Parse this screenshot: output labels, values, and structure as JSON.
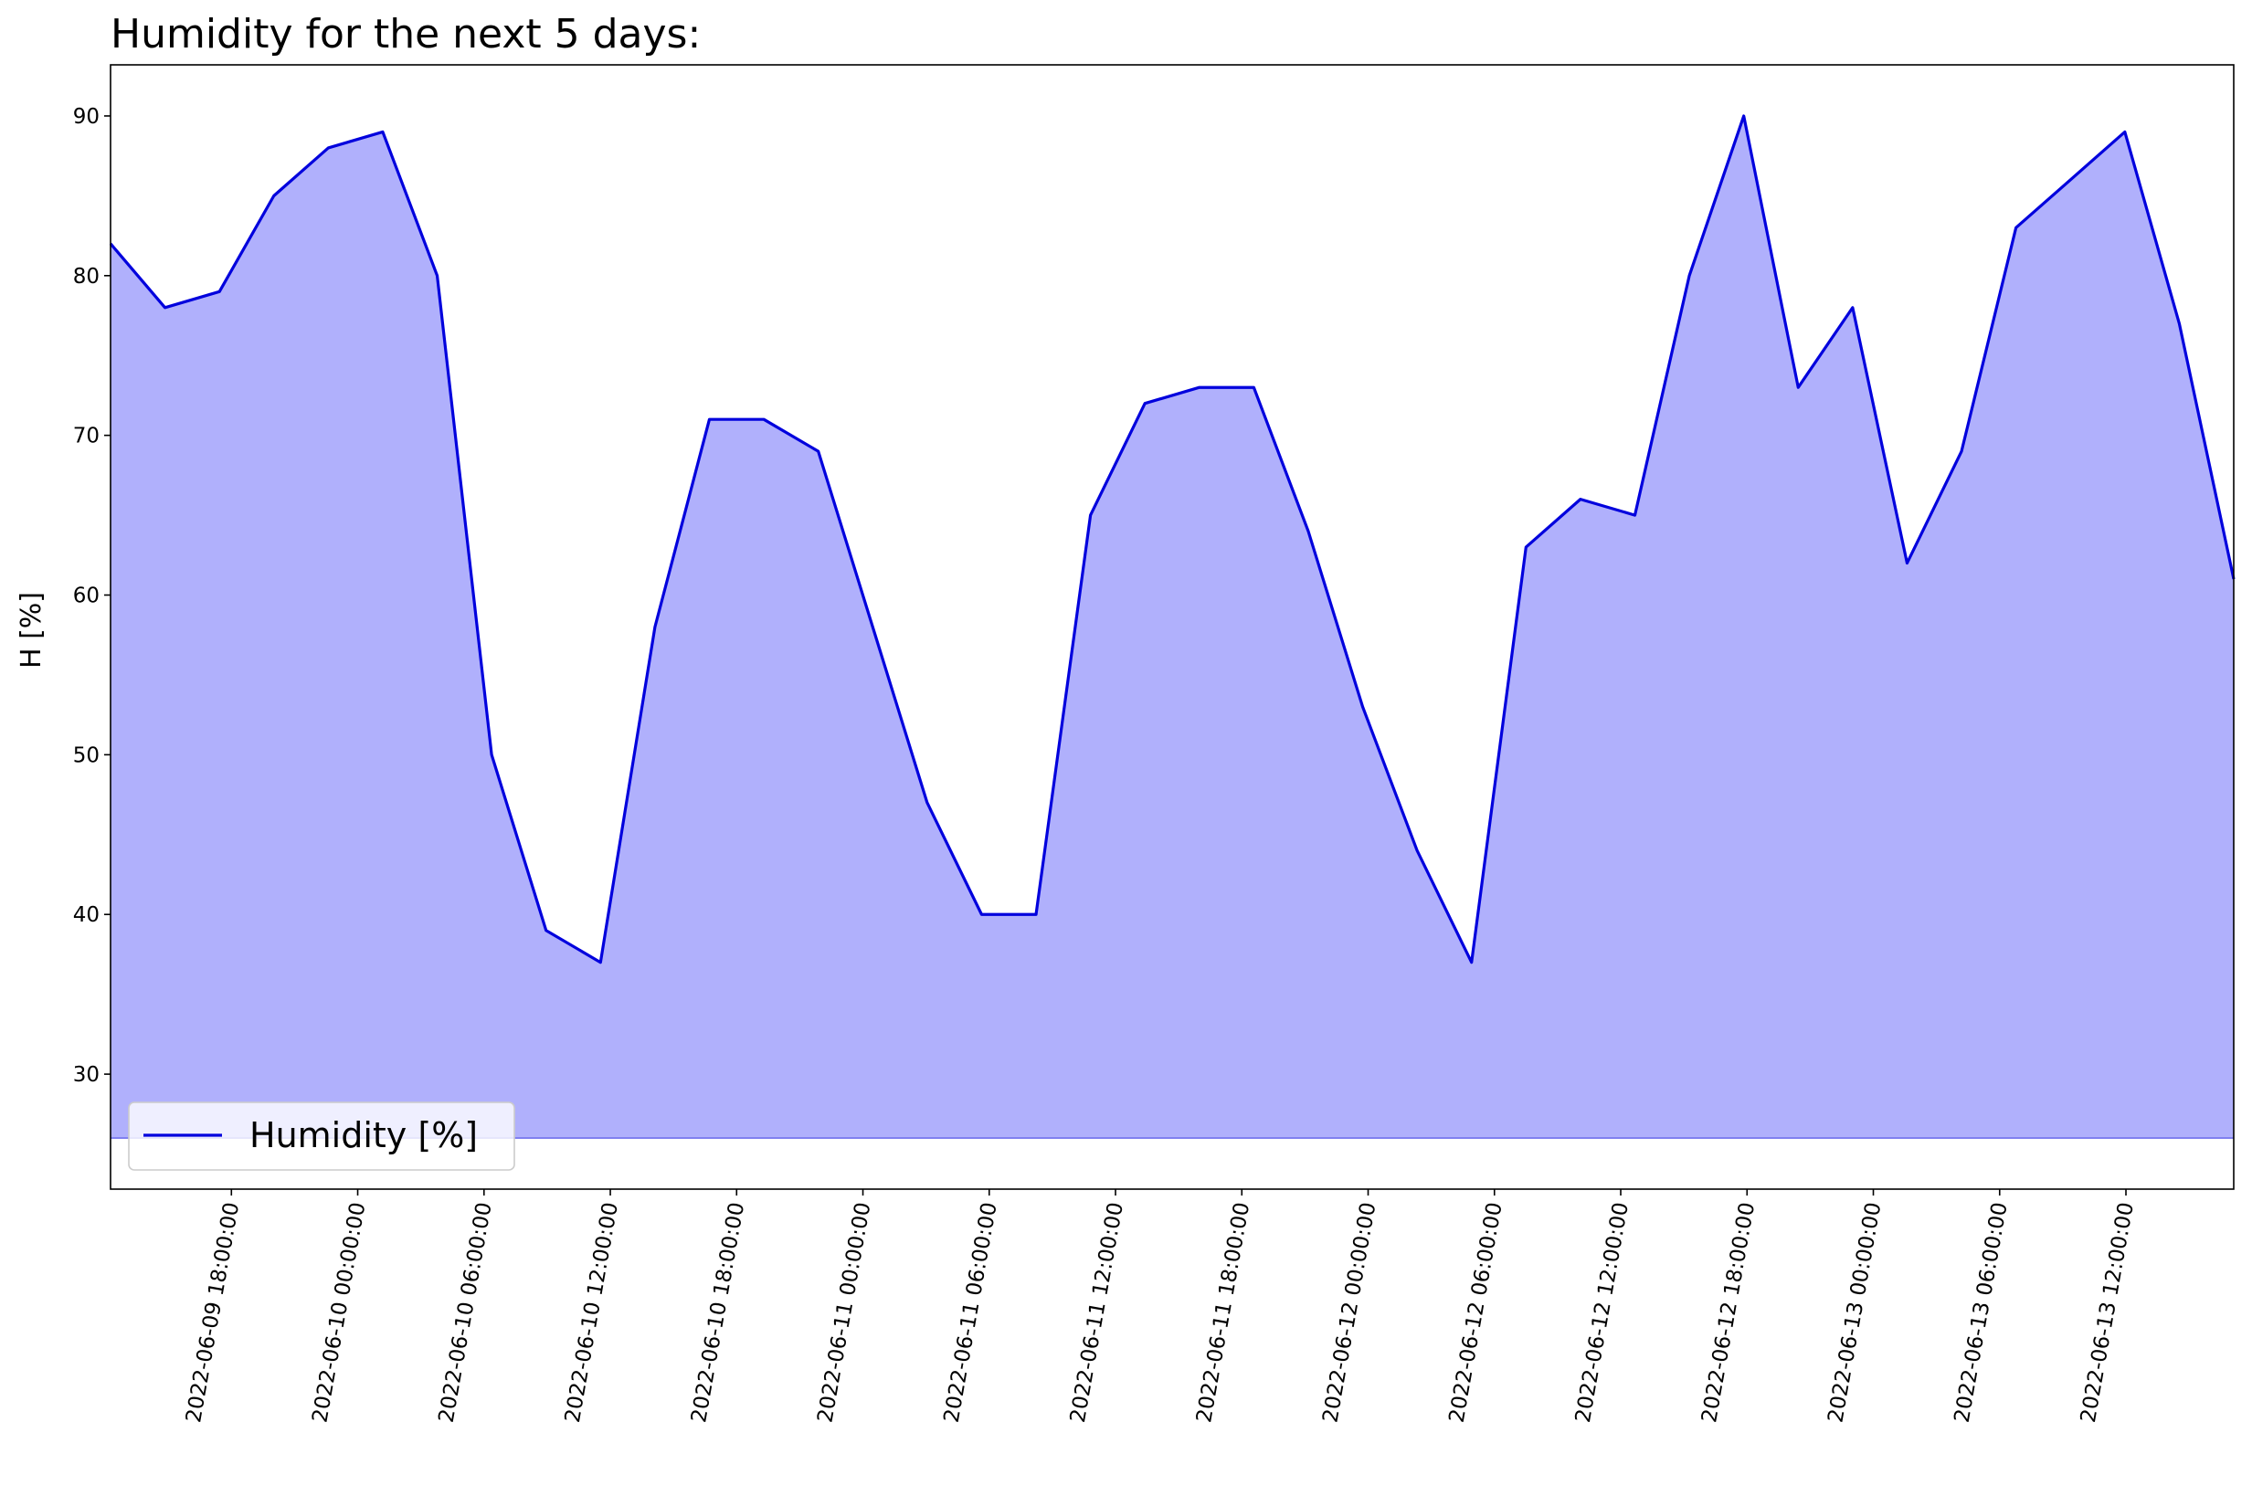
{
  "chart_data": {
    "type": "area",
    "title": "Humidity for the next 5 days:",
    "ylabel": "H [%]",
    "categories": [
      null,
      null,
      null,
      null,
      null,
      null,
      null,
      null,
      null,
      null,
      null,
      null,
      null,
      null,
      null,
      null,
      null,
      null,
      null,
      null,
      null,
      null,
      null,
      null,
      null,
      null,
      null,
      null,
      null,
      null,
      null,
      null,
      null,
      null,
      null,
      null,
      null,
      null,
      null,
      null
    ],
    "series": [
      {
        "name": "Humidity [%]",
        "color": "#0000dd",
        "fill": "#b0b0fc",
        "values": [
          82,
          78,
          79,
          85,
          88,
          89,
          80,
          50,
          39,
          37,
          58,
          71,
          71,
          69,
          58,
          47,
          40,
          40,
          65,
          72,
          73,
          73,
          64,
          53,
          44,
          37,
          63,
          66,
          65,
          80,
          90,
          73,
          78,
          62,
          69,
          83,
          86,
          89,
          77,
          61
        ]
      }
    ],
    "fill_to": 26,
    "xlim": [
      0,
      39
    ],
    "xticks": [
      {
        "value": 2.22,
        "label": "2022-06-09 18:00:00"
      },
      {
        "value": 4.54,
        "label": "2022-06-10 00:00:00"
      },
      {
        "value": 6.86,
        "label": "2022-06-10 06:00:00"
      },
      {
        "value": 9.18,
        "label": "2022-06-10 12:00:00"
      },
      {
        "value": 11.5,
        "label": "2022-06-10 18:00:00"
      },
      {
        "value": 13.82,
        "label": "2022-06-11 00:00:00"
      },
      {
        "value": 16.14,
        "label": "2022-06-11 06:00:00"
      },
      {
        "value": 18.46,
        "label": "2022-06-11 12:00:00"
      },
      {
        "value": 20.78,
        "label": "2022-06-11 18:00:00"
      },
      {
        "value": 23.1,
        "label": "2022-06-12 00:00:00"
      },
      {
        "value": 25.42,
        "label": "2022-06-12 06:00:00"
      },
      {
        "value": 27.74,
        "label": "2022-06-12 12:00:00"
      },
      {
        "value": 30.06,
        "label": "2022-06-12 18:00:00"
      },
      {
        "value": 32.38,
        "label": "2022-06-13 00:00:00"
      },
      {
        "value": 34.7,
        "label": "2022-06-13 06:00:00"
      },
      {
        "value": 37.02,
        "label": "2022-06-13 12:00:00"
      }
    ],
    "ylim": [
      22.8,
      93.2
    ],
    "yticks": [
      30,
      40,
      50,
      60,
      70,
      80,
      90
    ],
    "legend": "lower left"
  }
}
